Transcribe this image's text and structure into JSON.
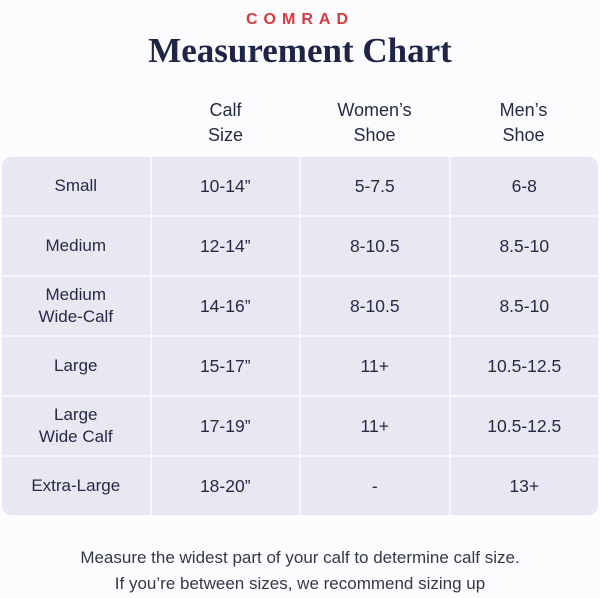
{
  "brand": {
    "logo": "COMRAD"
  },
  "title": "Measurement Chart",
  "chart_data": {
    "type": "table",
    "title": "Measurement Chart",
    "columns": [
      "",
      "Calf\nSize",
      "Women’s\nShoe",
      "Men’s\nShoe"
    ],
    "rows": [
      [
        "Small",
        "10-14”",
        "5-7.5",
        "6-8"
      ],
      [
        "Medium",
        "12-14”",
        "8-10.5",
        "8.5-10"
      ],
      [
        "Medium\nWide-Calf",
        "14-16”",
        "8-10.5",
        "8.5-10"
      ],
      [
        "Large",
        "15-17”",
        "11+",
        "10.5-12.5"
      ],
      [
        "Large\nWide Calf",
        "17-19”",
        "11+",
        "10.5-12.5"
      ],
      [
        "Extra-Large",
        "18-20”",
        "-",
        "13+"
      ]
    ]
  },
  "footer": {
    "note": "Measure the widest part of your calf to determine calf size.\nIf you’re between sizes, we recommend sizing up"
  },
  "colors": {
    "accent_red": "#D6393E",
    "navy": "#1E2547",
    "cell_background": "#E8E7F2",
    "gridline": "#F5F5FA",
    "page_background": "#FCFCFE"
  }
}
